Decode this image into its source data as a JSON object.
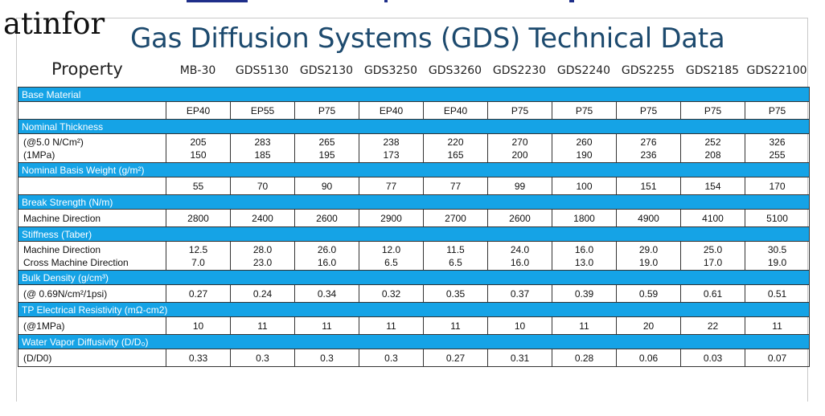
{
  "watermark": "atinfor",
  "title": "Gas Diffusion Systems (GDS) Technical Data",
  "property_header": "Property",
  "models": [
    "MB-30",
    "GDS5130",
    "GDS2130",
    "GDS3250",
    "GDS3260",
    "GDS2230",
    "GDS2240",
    "GDS2255",
    "GDS2185",
    "GDS22100"
  ],
  "sections": [
    {
      "name": "Base Material",
      "rows": [
        {
          "label": [
            ""
          ],
          "values": [
            [
              "EP40"
            ],
            [
              "EP55"
            ],
            [
              "P75"
            ],
            [
              "EP40"
            ],
            [
              "EP40"
            ],
            [
              "P75"
            ],
            [
              "P75"
            ],
            [
              "P75"
            ],
            [
              "P75"
            ],
            [
              "P75"
            ]
          ]
        }
      ]
    },
    {
      "name": "Nominal Thickness",
      "rows": [
        {
          "label": [
            "(@5.0 N/Cm²)",
            "(1MPa)"
          ],
          "values": [
            [
              "205",
              "150"
            ],
            [
              "283",
              "185"
            ],
            [
              "265",
              "195"
            ],
            [
              "238",
              "173"
            ],
            [
              "220",
              "165"
            ],
            [
              "270",
              "200"
            ],
            [
              "260",
              "190"
            ],
            [
              "276",
              "236"
            ],
            [
              "252",
              "208"
            ],
            [
              "326",
              "255"
            ]
          ]
        }
      ]
    },
    {
      "name": "Nominal Basis Weight (g/m²)",
      "rows": [
        {
          "label": [
            ""
          ],
          "values": [
            [
              "55"
            ],
            [
              "70"
            ],
            [
              "90"
            ],
            [
              "77"
            ],
            [
              "77"
            ],
            [
              "99"
            ],
            [
              "100"
            ],
            [
              "151"
            ],
            [
              "154"
            ],
            [
              "170"
            ]
          ]
        }
      ]
    },
    {
      "name": "Break Strength (N/m)",
      "rows": [
        {
          "label": [
            "Machine Direction"
          ],
          "values": [
            [
              "2800"
            ],
            [
              "2400"
            ],
            [
              "2600"
            ],
            [
              "2900"
            ],
            [
              "2700"
            ],
            [
              "2600"
            ],
            [
              "1800"
            ],
            [
              "4900"
            ],
            [
              "4100"
            ],
            [
              "5100"
            ]
          ]
        }
      ]
    },
    {
      "name": "Stiffness (Taber)",
      "rows": [
        {
          "label": [
            "Machine Direction",
            "Cross Machine Direction"
          ],
          "values": [
            [
              "12.5",
              "7.0"
            ],
            [
              "28.0",
              "23.0"
            ],
            [
              "26.0",
              "16.0"
            ],
            [
              "12.0",
              "6.5"
            ],
            [
              "11.5",
              "6.5"
            ],
            [
              "24.0",
              "16.0"
            ],
            [
              "16.0",
              "13.0"
            ],
            [
              "29.0",
              "19.0"
            ],
            [
              "25.0",
              "17.0"
            ],
            [
              "30.5",
              "19.0"
            ]
          ]
        }
      ]
    },
    {
      "name": "Bulk Density (g/cm³)",
      "rows": [
        {
          "label": [
            "(@ 0.69N/cm²/1psi)"
          ],
          "values": [
            [
              "0.27"
            ],
            [
              "0.24"
            ],
            [
              "0.34"
            ],
            [
              "0.32"
            ],
            [
              "0.35"
            ],
            [
              "0.37"
            ],
            [
              "0.39"
            ],
            [
              "0.59"
            ],
            [
              "0.61"
            ],
            [
              "0.51"
            ]
          ]
        }
      ]
    },
    {
      "name": "TP Electrical Resistivity (mΩ-cm2)",
      "rows": [
        {
          "label": [
            "(@1MPa)"
          ],
          "values": [
            [
              "10"
            ],
            [
              "11"
            ],
            [
              "11"
            ],
            [
              "11"
            ],
            [
              "11"
            ],
            [
              "10"
            ],
            [
              "11"
            ],
            [
              "20"
            ],
            [
              "22"
            ],
            [
              "11"
            ]
          ]
        }
      ]
    },
    {
      "name": "Water Vapor Diffusivity (D/D₀)",
      "rows": [
        {
          "label": [
            "(D/D0)"
          ],
          "values": [
            [
              "0.33"
            ],
            [
              "0.3"
            ],
            [
              "0.3"
            ],
            [
              "0.3"
            ],
            [
              "0.27"
            ],
            [
              "0.31"
            ],
            [
              "0.28"
            ],
            [
              "0.06"
            ],
            [
              "0.03"
            ],
            [
              "0.07"
            ]
          ]
        }
      ]
    }
  ]
}
